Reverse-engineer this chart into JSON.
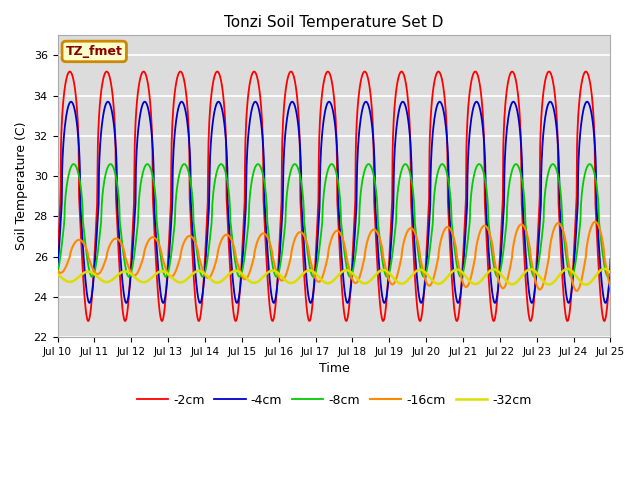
{
  "title": "Tonzi Soil Temperature Set D",
  "xlabel": "Time",
  "ylabel": "Soil Temperature (C)",
  "ylim": [
    22,
    37
  ],
  "series_order": [
    "-2cm",
    "-4cm",
    "-8cm",
    "-16cm",
    "-32cm"
  ],
  "colors": {
    "-2cm": "#ff0000",
    "-4cm": "#0000cc",
    "-8cm": "#00cc00",
    "-16cm": "#ff8800",
    "-32cm": "#dddd00"
  },
  "lw": {
    "-2cm": 1.3,
    "-4cm": 1.3,
    "-8cm": 1.3,
    "-16cm": 1.5,
    "-32cm": 1.8
  },
  "params": {
    "-2cm": {
      "mean": 29.0,
      "amp": 6.2,
      "phase_hrs": 2.0,
      "amp_decay": 0.0,
      "skew": 3.0
    },
    "-4cm": {
      "mean": 28.7,
      "amp": 5.0,
      "phase_hrs": 2.8,
      "amp_decay": 0.0,
      "skew": 2.5
    },
    "-8cm": {
      "mean": 27.8,
      "amp": 2.8,
      "phase_hrs": 4.5,
      "amp_decay": 0.0,
      "skew": 2.0
    },
    "-16cm": {
      "mean": 26.0,
      "amp": 0.8,
      "phase_hrs": 8.0,
      "amp_decay": 0.08,
      "skew": 1.5
    },
    "-32cm": {
      "mean": 25.0,
      "amp": 0.25,
      "phase_hrs": 14.0,
      "amp_decay": 0.04,
      "skew": 1.0
    }
  },
  "tick_labels": [
    "Jul 10",
    "Jul 11",
    "Jul 12",
    "Jul 13",
    "Jul 14",
    "Jul 15",
    "Jul 16",
    "Jul 17",
    "Jul 18",
    "Jul 19",
    "Jul 20",
    "Jul 21",
    "Jul 22",
    "Jul 23",
    "Jul 24",
    "Jul 25"
  ],
  "annotation_text": "TZ_fmet",
  "annotation_bg": "#ffffcc",
  "annotation_edge": "#cc8800",
  "bg_color": "#dcdcdc",
  "grid_color": "#ffffff",
  "yticks": [
    22,
    24,
    26,
    28,
    30,
    32,
    34,
    36
  ],
  "n_days": 15,
  "pts_per_day": 96
}
